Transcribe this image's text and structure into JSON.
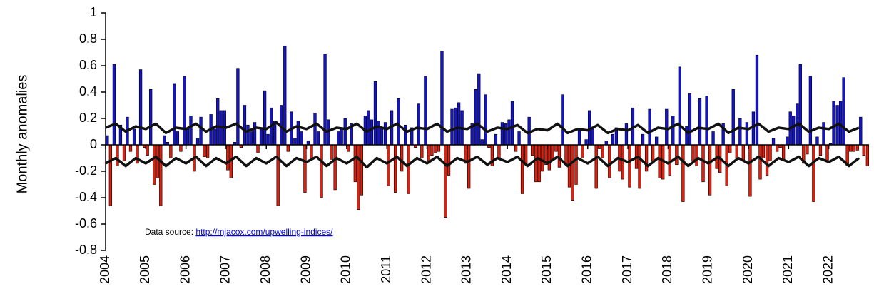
{
  "chart_data": {
    "type": "bar",
    "y_label": "Monthly anomalies",
    "annotation": {
      "text": "Data source:",
      "link": "http://mjacox.com/upwelling-indices/"
    },
    "positive_color": "#1414c8",
    "negative_color": "#e0200f",
    "xlim": [
      2004,
      2023
    ],
    "xticks": [
      2004,
      2005,
      2006,
      2007,
      2008,
      2009,
      2010,
      2011,
      2012,
      2013,
      2014,
      2015,
      2016,
      2017,
      2018,
      2019,
      2020,
      2021,
      2022
    ],
    "ylim": [
      -0.8,
      1
    ],
    "yticks": [
      1,
      0.8,
      0.6,
      0.4,
      0.2,
      0,
      -0.2,
      -0.4,
      -0.6,
      -0.8
    ],
    "x": [
      2004,
      2004.08,
      2004.17,
      2004.25,
      2004.33,
      2004.42,
      2004.5,
      2004.58,
      2004.67,
      2004.75,
      2004.83,
      2004.92,
      2005,
      2005.08,
      2005.17,
      2005.25,
      2005.33,
      2005.42,
      2005.5,
      2005.58,
      2005.67,
      2005.75,
      2005.83,
      2005.92,
      2006,
      2006.08,
      2006.17,
      2006.25,
      2006.33,
      2006.42,
      2006.5,
      2006.58,
      2006.67,
      2006.75,
      2006.83,
      2006.92,
      2007,
      2007.08,
      2007.17,
      2007.25,
      2007.33,
      2007.42,
      2007.5,
      2007.58,
      2007.67,
      2007.75,
      2007.83,
      2007.92,
      2008,
      2008.08,
      2008.17,
      2008.25,
      2008.33,
      2008.42,
      2008.5,
      2008.58,
      2008.67,
      2008.75,
      2008.83,
      2008.92,
      2009,
      2009.08,
      2009.17,
      2009.25,
      2009.33,
      2009.42,
      2009.5,
      2009.58,
      2009.67,
      2009.75,
      2009.83,
      2009.92,
      2010,
      2010.08,
      2010.17,
      2010.25,
      2010.33,
      2010.42,
      2010.5,
      2010.58,
      2010.67,
      2010.75,
      2010.83,
      2010.92,
      2011,
      2011.08,
      2011.17,
      2011.25,
      2011.33,
      2011.42,
      2011.5,
      2011.58,
      2011.67,
      2011.75,
      2011.83,
      2011.92,
      2012,
      2012.08,
      2012.17,
      2012.25,
      2012.33,
      2012.42,
      2012.5,
      2012.58,
      2012.67,
      2012.75,
      2012.83,
      2012.92,
      2013,
      2013.08,
      2013.17,
      2013.25,
      2013.33,
      2013.42,
      2013.5,
      2013.58,
      2013.67,
      2013.75,
      2013.83,
      2013.92,
      2014,
      2014.08,
      2014.17,
      2014.25,
      2014.33,
      2014.42,
      2014.5,
      2014.58,
      2014.67,
      2014.75,
      2014.83,
      2014.92,
      2015,
      2015.08,
      2015.17,
      2015.25,
      2015.33,
      2015.42,
      2015.5,
      2015.58,
      2015.67,
      2015.75,
      2015.83,
      2015.92,
      2016,
      2016.08,
      2016.17,
      2016.25,
      2016.33,
      2016.42,
      2016.5,
      2016.58,
      2016.67,
      2016.75,
      2016.83,
      2016.92,
      2017,
      2017.08,
      2017.17,
      2017.25,
      2017.33,
      2017.42,
      2017.5,
      2017.58,
      2017.67,
      2017.75,
      2017.83,
      2017.92,
      2018,
      2018.08,
      2018.17,
      2018.25,
      2018.33,
      2018.42,
      2018.5,
      2018.58,
      2018.67,
      2018.75,
      2018.83,
      2018.92,
      2019,
      2019.08,
      2019.17,
      2019.25,
      2019.33,
      2019.42,
      2019.5,
      2019.58,
      2019.67,
      2019.75,
      2019.83,
      2019.92,
      2020,
      2020.08,
      2020.17,
      2020.25,
      2020.33,
      2020.42,
      2020.5,
      2020.58,
      2020.67,
      2020.75,
      2020.83,
      2020.92,
      2021,
      2021.08,
      2021.17,
      2021.25,
      2021.33,
      2021.42,
      2021.5,
      2021.58,
      2021.67,
      2021.75,
      2021.83,
      2021.92,
      2022,
      2022.08,
      2022.17,
      2022.25,
      2022.33,
      2022.42,
      2022.5,
      2022.58,
      2022.67,
      2022.75,
      2022.83,
      2022.92
    ],
    "values": [
      0.07,
      -0.46,
      0.61,
      -0.16,
      0.15,
      -0.12,
      0.21,
      -0.05,
      0.12,
      -0.14,
      0.57,
      -0.02,
      -0.08,
      0.42,
      -0.3,
      -0.25,
      -0.46,
      0.07,
      0.02,
      -0.1,
      0.46,
      0.1,
      -0.05,
      0.52,
      0.12,
      0.22,
      -0.2,
      0.05,
      0.21,
      -0.09,
      -0.1,
      0.23,
      0.12,
      0.35,
      0.26,
      0.26,
      -0.19,
      -0.25,
      0.02,
      0.58,
      -0.02,
      0.3,
      0.15,
      0.1,
      0.17,
      -0.06,
      0.12,
      0.41,
      0.08,
      0.28,
      0.18,
      -0.46,
      0.3,
      0.75,
      -0.05,
      0.25,
      0.05,
      0.18,
      0.1,
      -0.36,
      0.03,
      -0.1,
      0.24,
      0.1,
      -0.4,
      0.69,
      0.19,
      -0.11,
      -0.34,
      0.1,
      0.12,
      0.2,
      -0.05,
      0.16,
      -0.28,
      -0.49,
      -0.38,
      0.22,
      0.26,
      0.19,
      0.48,
      0.18,
      0.13,
      0.17,
      -0.31,
      0.26,
      -0.36,
      0.35,
      -0.2,
      0.15,
      -0.37,
      0.13,
      -0.02,
      0.31,
      -0.1,
      0.52,
      -0.12,
      -0.08,
      -0.06,
      -0.05,
      0.71,
      -0.55,
      -0.23,
      0.27,
      0.28,
      0.32,
      0.26,
      -0.14,
      -0.33,
      0.16,
      0.42,
      0.54,
      0.04,
      0.38,
      -0.02,
      -0.16,
      0.08,
      -0.1,
      0.17,
      0.16,
      0.19,
      0.33,
      -0.05,
      0.1,
      -0.37,
      -0.15,
      0.21,
      -0.08,
      -0.28,
      -0.28,
      -0.2,
      -0.15,
      -0.19,
      -0.12,
      -0.05,
      -0.17,
      0.38,
      -0.15,
      -0.32,
      -0.42,
      -0.3,
      0.12,
      -0.1,
      0.04,
      0.26,
      0.13,
      -0.33,
      -0.03,
      -0.1,
      0.03,
      -0.25,
      0.08,
      0.13,
      -0.2,
      -0.26,
      0.16,
      -0.32,
      0.28,
      -0.18,
      -0.33,
      0.08,
      -0.2,
      0.27,
      -0.12,
      0.06,
      -0.25,
      -0.26,
      0.27,
      -0.23,
      0.22,
      -0.15,
      0.59,
      -0.43,
      0.14,
      0.39,
      -0.12,
      -0.16,
      0.35,
      -0.28,
      0.37,
      -0.38,
      0.1,
      -0.18,
      -0.21,
      0.16,
      -0.31,
      -0.06,
      0.42,
      -0.1,
      0.2,
      -0.12,
      0.17,
      -0.39,
      0.25,
      0.68,
      -0.26,
      -0.1,
      -0.23,
      -0.12,
      0.05,
      -0.05,
      -0.02,
      -0.12,
      0.06,
      0.25,
      0.22,
      0.31,
      0.61,
      -0.14,
      -0.07,
      0.52,
      -0.43,
      0.06,
      -0.08,
      0.17,
      -0.13,
      0.01,
      0.33,
      0.3,
      0.33,
      0.51,
      -0.16,
      -0.05,
      -0.05,
      -0.04,
      0.21,
      -0.08,
      -0.16
    ],
    "lines": [
      {
        "type": "line",
        "color": "#111111",
        "x": [
          2004,
          2004.25,
          2004.5,
          2004.75,
          2005,
          2005.25,
          2005.5,
          2005.75,
          2006,
          2006.25,
          2006.5,
          2006.75,
          2007,
          2007.25,
          2007.5,
          2007.75,
          2008,
          2008.25,
          2008.5,
          2008.75,
          2009,
          2009.25,
          2009.5,
          2009.75,
          2010,
          2010.25,
          2010.5,
          2010.75,
          2011,
          2011.25,
          2011.5,
          2011.75,
          2012,
          2012.25,
          2012.5,
          2012.75,
          2013,
          2013.25,
          2013.5,
          2013.75,
          2014,
          2014.25,
          2014.5,
          2014.75,
          2015,
          2015.25,
          2015.5,
          2015.75,
          2016,
          2016.25,
          2016.5,
          2016.75,
          2017,
          2017.25,
          2017.5,
          2017.75,
          2018,
          2018.25,
          2018.5,
          2018.75,
          2019,
          2019.25,
          2019.5,
          2019.75,
          2020,
          2020.25,
          2020.5,
          2020.75,
          2021,
          2021.25,
          2021.5,
          2021.75,
          2022,
          2022.25,
          2022.5,
          2022.75
        ],
        "values": [
          0.13,
          0.16,
          0.1,
          0.14,
          0.12,
          0.16,
          0.09,
          0.13,
          0.12,
          0.16,
          0.1,
          0.14,
          0.13,
          0.16,
          0.1,
          0.13,
          0.12,
          0.17,
          0.1,
          0.14,
          0.12,
          0.16,
          0.1,
          0.13,
          0.12,
          0.16,
          0.1,
          0.14,
          0.12,
          0.16,
          0.1,
          0.13,
          0.12,
          0.16,
          0.1,
          0.13,
          0.12,
          0.16,
          0.1,
          0.13,
          0.12,
          0.15,
          0.09,
          0.12,
          0.11,
          0.16,
          0.09,
          0.12,
          0.11,
          0.15,
          0.09,
          0.12,
          0.11,
          0.15,
          0.09,
          0.13,
          0.12,
          0.16,
          0.09,
          0.13,
          0.12,
          0.16,
          0.09,
          0.13,
          0.12,
          0.16,
          0.1,
          0.13,
          0.12,
          0.16,
          0.1,
          0.13,
          0.12,
          0.16,
          0.1,
          0.13
        ]
      },
      {
        "type": "line",
        "color": "#111111",
        "x": [
          2004,
          2004.25,
          2004.5,
          2004.75,
          2005,
          2005.25,
          2005.5,
          2005.75,
          2006,
          2006.25,
          2006.5,
          2006.75,
          2007,
          2007.25,
          2007.5,
          2007.75,
          2008,
          2008.25,
          2008.5,
          2008.75,
          2009,
          2009.25,
          2009.5,
          2009.75,
          2010,
          2010.25,
          2010.5,
          2010.75,
          2011,
          2011.25,
          2011.5,
          2011.75,
          2012,
          2012.25,
          2012.5,
          2012.75,
          2013,
          2013.25,
          2013.5,
          2013.75,
          2014,
          2014.25,
          2014.5,
          2014.75,
          2015,
          2015.25,
          2015.5,
          2015.75,
          2016,
          2016.25,
          2016.5,
          2016.75,
          2017,
          2017.25,
          2017.5,
          2017.75,
          2018,
          2018.25,
          2018.5,
          2018.75,
          2019,
          2019.25,
          2019.5,
          2019.75,
          2020,
          2020.25,
          2020.5,
          2020.75,
          2021,
          2021.25,
          2021.5,
          2021.75,
          2022,
          2022.25,
          2022.5,
          2022.75
        ],
        "values": [
          -0.14,
          -0.1,
          -0.16,
          -0.1,
          -0.14,
          -0.09,
          -0.16,
          -0.1,
          -0.14,
          -0.09,
          -0.16,
          -0.1,
          -0.14,
          -0.09,
          -0.16,
          -0.1,
          -0.14,
          -0.09,
          -0.16,
          -0.1,
          -0.13,
          -0.09,
          -0.16,
          -0.1,
          -0.14,
          -0.09,
          -0.17,
          -0.1,
          -0.14,
          -0.09,
          -0.16,
          -0.1,
          -0.14,
          -0.09,
          -0.16,
          -0.1,
          -0.13,
          -0.09,
          -0.15,
          -0.1,
          -0.13,
          -0.09,
          -0.16,
          -0.1,
          -0.14,
          -0.09,
          -0.16,
          -0.1,
          -0.14,
          -0.09,
          -0.16,
          -0.1,
          -0.13,
          -0.09,
          -0.16,
          -0.1,
          -0.14,
          -0.09,
          -0.16,
          -0.1,
          -0.14,
          -0.09,
          -0.16,
          -0.1,
          -0.14,
          -0.09,
          -0.16,
          -0.1,
          -0.13,
          -0.09,
          -0.16,
          -0.1,
          -0.13,
          -0.09,
          -0.16,
          -0.1
        ]
      }
    ]
  }
}
